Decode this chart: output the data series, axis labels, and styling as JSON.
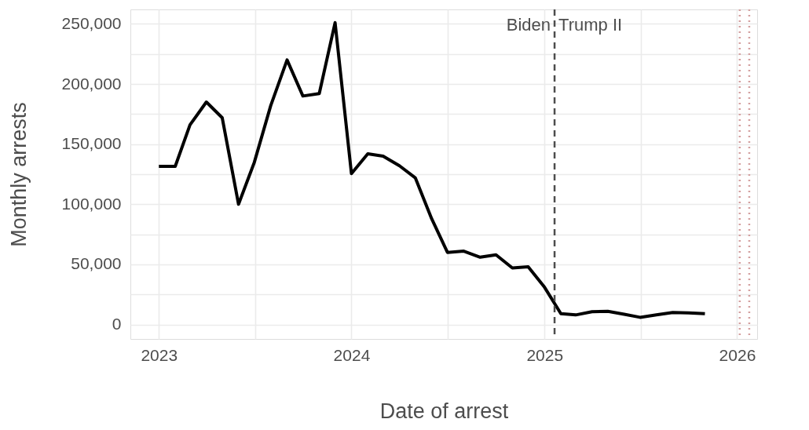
{
  "chart_data": {
    "type": "line",
    "xlabel": "Date of arrest",
    "ylabel": "Monthly arrests",
    "x": [
      "2023-01",
      "2023-02",
      "2023-03",
      "2023-04",
      "2023-05",
      "2023-06",
      "2023-07",
      "2023-08",
      "2023-09",
      "2023-10",
      "2023-11",
      "2023-12",
      "2024-01",
      "2024-02",
      "2024-03",
      "2024-04",
      "2024-05",
      "2024-06",
      "2024-07",
      "2024-08",
      "2024-09",
      "2024-10",
      "2024-11",
      "2024-12",
      "2025-01",
      "2025-02",
      "2025-03",
      "2025-04",
      "2025-05",
      "2025-06",
      "2025-07",
      "2025-08",
      "2025-09",
      "2025-10",
      "2025-11"
    ],
    "series": [
      {
        "color": "#000000",
        "values": [
          131500,
          131500,
          166000,
          185000,
          172000,
          100000,
          135000,
          182000,
          220000,
          190000,
          192000,
          251000,
          125500,
          142000,
          140000,
          132000,
          122000,
          88000,
          60000,
          61000,
          56000,
          58000,
          47000,
          48000,
          31000,
          9000,
          8000,
          10700,
          11000,
          8500,
          6000,
          8000,
          10000,
          9700,
          9000
        ]
      }
    ],
    "xlim": [
      "2022-11-08",
      "2026-02-08"
    ],
    "xticks": [
      {
        "value": "2023-01-01",
        "label": "2023"
      },
      {
        "value": "2023-07-02",
        "label": null
      },
      {
        "value": "2024-01-01",
        "label": "2024"
      },
      {
        "value": "2024-07-02",
        "label": null
      },
      {
        "value": "2025-01-01",
        "label": "2025"
      },
      {
        "value": "2025-07-02",
        "label": null
      },
      {
        "value": "2026-01-01",
        "label": "2026"
      }
    ],
    "ylim": [
      -12000,
      262000
    ],
    "yticks": [
      0,
      {
        "value": 25000,
        "label": null
      },
      {
        "value": 50000,
        "label": "50,000"
      },
      {
        "value": 75000,
        "label": null
      },
      {
        "value": 100000,
        "label": "100,000"
      },
      {
        "value": 125000,
        "label": null
      },
      {
        "value": 150000,
        "label": "150,000"
      },
      {
        "value": 175000,
        "label": null
      },
      {
        "value": 200000,
        "label": "200,000"
      },
      {
        "value": 225000,
        "label": null
      },
      {
        "value": 250000,
        "label": "250,000"
      }
    ],
    "grid": true,
    "marker": "none",
    "line_style": "solid",
    "ref_lines": [
      {
        "axis": "x",
        "value": "2025-01-20",
        "color": "#4d4d4d",
        "line_style": "dashed"
      },
      {
        "axis": "x",
        "value": "2026-01-06",
        "color": "#d4a0a0",
        "line_style": "dotted"
      },
      {
        "axis": "x",
        "value": "2026-01-24",
        "color": "#d4a0a0",
        "line_style": "dotted"
      }
    ],
    "annotations": [
      "Biden",
      "Trump II"
    ]
  }
}
